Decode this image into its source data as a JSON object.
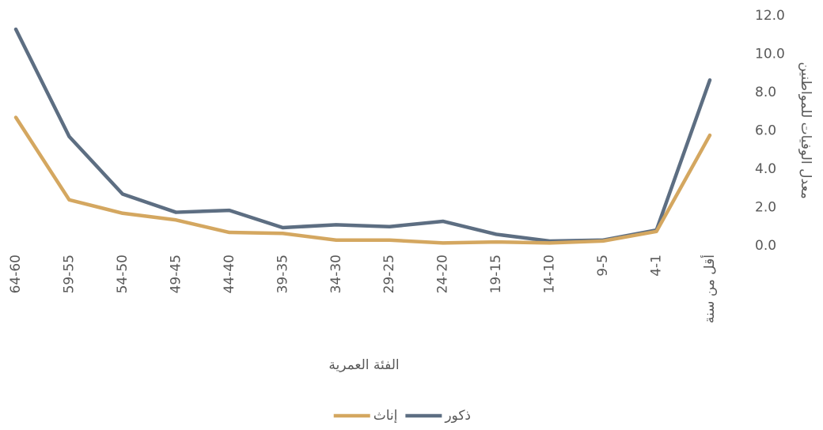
{
  "chart_data": {
    "type": "line",
    "categories": [
      "أقل من سنة",
      "4-1",
      "9-5",
      "14-10",
      "19-15",
      "24-20",
      "29-25",
      "34-30",
      "39-35",
      "44-40",
      "49-45",
      "54-50",
      "59-55",
      "64-60"
    ],
    "x_label": "الفئة العمرية",
    "y_label": "معدل الوفيات للمواطنين",
    "ylim": [
      0,
      12
    ],
    "yticks": [
      {
        "value": 0,
        "label": "0.0"
      },
      {
        "value": 2,
        "label": "2.0"
      },
      {
        "value": 4,
        "label": "4.0"
      },
      {
        "value": 6,
        "label": "6.0"
      },
      {
        "value": 8,
        "label": "8.0"
      },
      {
        "value": 10,
        "label": "10.0"
      },
      {
        "value": 12,
        "label": "12.0"
      }
    ],
    "series": [
      {
        "name": "ذكور",
        "color": "#5d6e82",
        "values": [
          8.65,
          0.82,
          0.3,
          0.25,
          0.6,
          1.28,
          1.0,
          1.1,
          0.95,
          1.85,
          1.75,
          2.7,
          5.7,
          11.3
        ]
      },
      {
        "name": "إناث",
        "color": "#d4a760",
        "values": [
          5.77,
          0.75,
          0.25,
          0.15,
          0.2,
          0.15,
          0.3,
          0.3,
          0.65,
          0.7,
          1.35,
          1.7,
          2.4,
          6.7
        ]
      }
    ]
  }
}
